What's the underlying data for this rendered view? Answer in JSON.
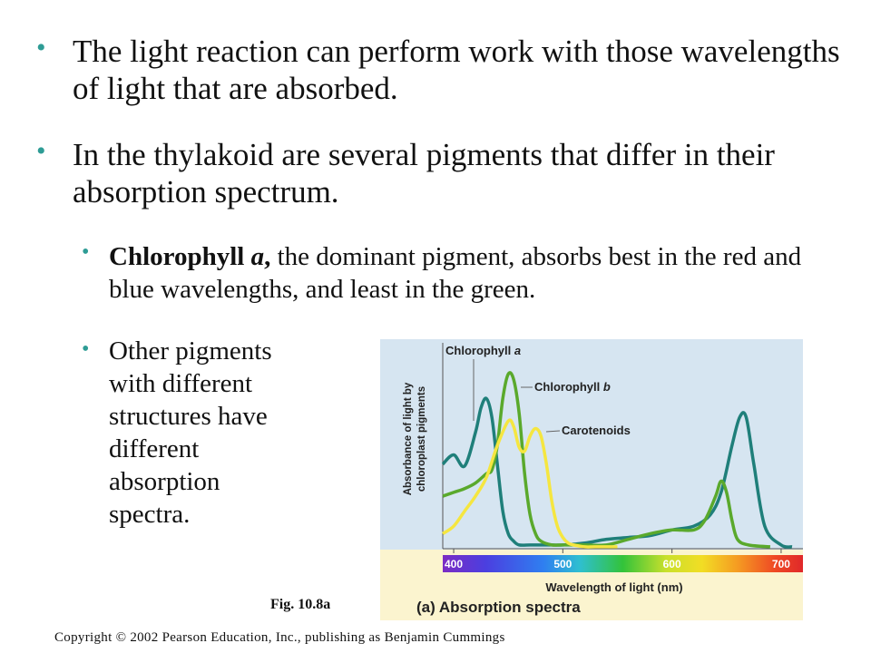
{
  "slide": {
    "bullet_char": "•",
    "bullets": [
      {
        "text": "The light reaction can perform work with those wavelengths of light that are absorbed."
      },
      {
        "text": "In the thylakoid are several pigments that differ in their absorption spectrum."
      },
      {
        "bold_text": "Chlorophyll ",
        "bold_italic_text": "a",
        "bold_text_2": ",",
        "text": " the dominant pigment, absorbs best in the red and blue wavelengths, and least in the green."
      },
      {
        "lines": [
          "Other pigments",
          "with different",
          "structures have",
          "different",
          "absorption",
          "spectra."
        ]
      }
    ],
    "fig_label": "Fig. 10.8a",
    "copyright": "Copyright © 2002 Pearson Education, Inc., publishing as Benjamin Cummings"
  },
  "chart_data": {
    "type": "line",
    "title": "(a) Absorption spectra",
    "xlabel": "Wavelength of light (nm)",
    "ylabel": "Absorbance of light by chloroplast pigments",
    "xlim": [
      390,
      720
    ],
    "ylim": [
      0,
      1
    ],
    "x_ticks": [
      400,
      500,
      600,
      700
    ],
    "series": [
      {
        "name": "Chlorophyll a",
        "color": "#1f7f7a",
        "x": [
          390,
          400,
          410,
          420,
          425,
          430,
          435,
          440,
          445,
          450,
          455,
          460,
          470,
          480,
          490,
          500,
          520,
          540,
          560,
          580,
          600,
          620,
          635,
          645,
          655,
          662,
          668,
          675,
          685,
          700,
          710
        ],
        "y": [
          0.45,
          0.5,
          0.44,
          0.62,
          0.75,
          0.8,
          0.7,
          0.45,
          0.2,
          0.08,
          0.04,
          0.02,
          0.02,
          0.02,
          0.02,
          0.02,
          0.03,
          0.05,
          0.06,
          0.07,
          0.1,
          0.12,
          0.18,
          0.3,
          0.55,
          0.7,
          0.7,
          0.45,
          0.12,
          0.02,
          0.01
        ]
      },
      {
        "name": "Chlorophyll b",
        "color": "#5aa92c",
        "x": [
          390,
          400,
          410,
          420,
          430,
          435,
          440,
          445,
          450,
          455,
          460,
          465,
          470,
          475,
          480,
          490,
          500,
          520,
          540,
          560,
          580,
          600,
          620,
          630,
          640,
          645,
          650,
          655,
          660,
          670,
          690
        ],
        "y": [
          0.28,
          0.3,
          0.32,
          0.35,
          0.4,
          0.42,
          0.55,
          0.8,
          0.93,
          0.9,
          0.72,
          0.4,
          0.18,
          0.08,
          0.04,
          0.02,
          0.02,
          0.02,
          0.02,
          0.05,
          0.08,
          0.1,
          0.1,
          0.15,
          0.28,
          0.36,
          0.3,
          0.15,
          0.05,
          0.02,
          0.01
        ]
      },
      {
        "name": "Carotenoids",
        "color": "#f5e640",
        "x": [
          390,
          400,
          410,
          420,
          430,
          440,
          450,
          455,
          460,
          465,
          470,
          475,
          480,
          485,
          490,
          495,
          500,
          505,
          510,
          520,
          530,
          550
        ],
        "y": [
          0.08,
          0.12,
          0.2,
          0.28,
          0.38,
          0.55,
          0.68,
          0.65,
          0.54,
          0.52,
          0.6,
          0.64,
          0.6,
          0.45,
          0.25,
          0.12,
          0.06,
          0.03,
          0.02,
          0.01,
          0.01,
          0.01
        ]
      }
    ]
  }
}
